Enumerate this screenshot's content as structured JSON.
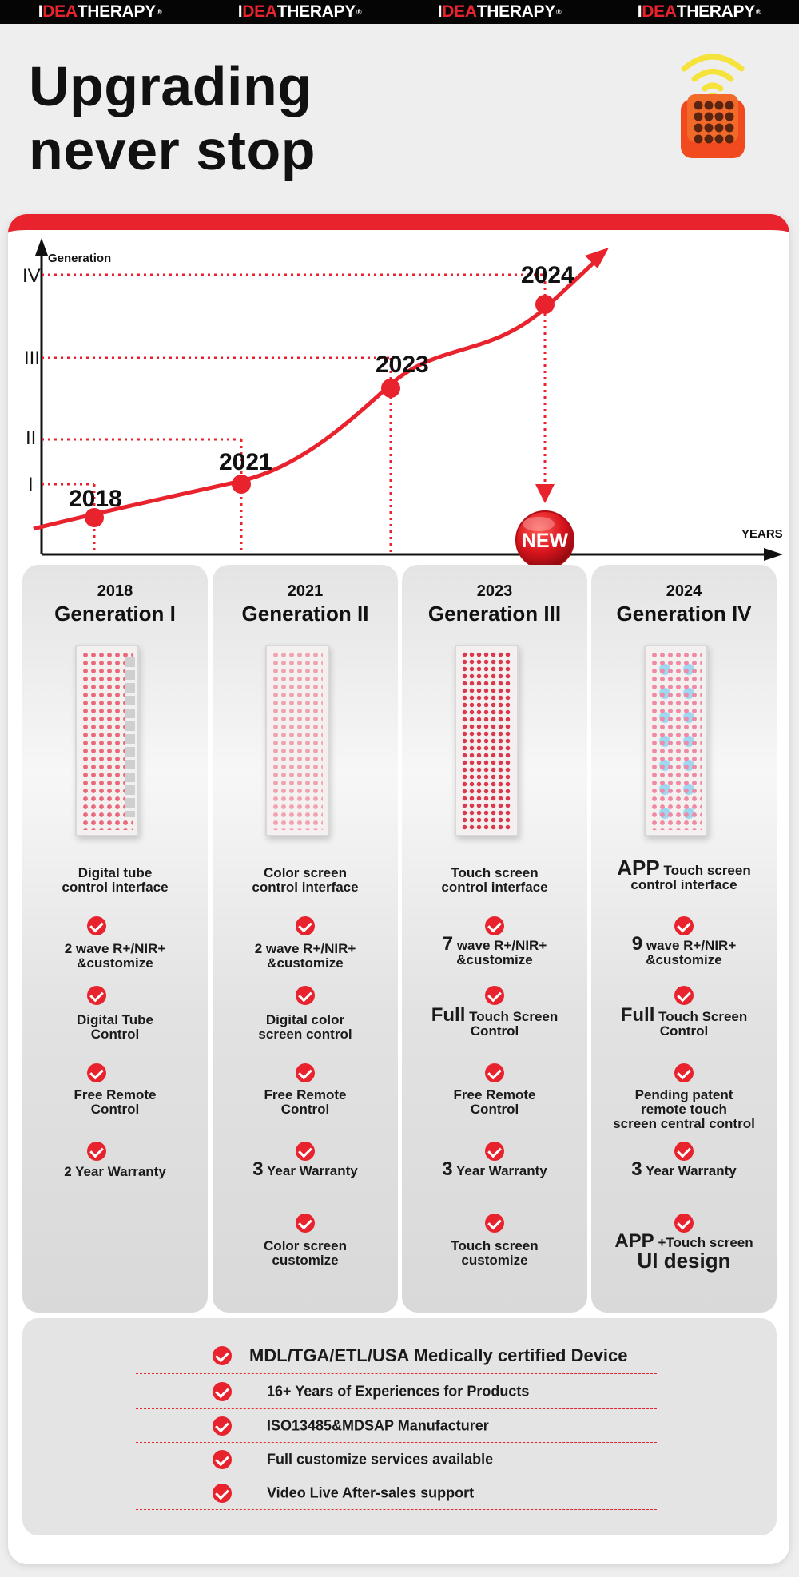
{
  "brand": {
    "items": [
      {
        "pre": "I",
        "accent": "DEA",
        "rest": "THERAPY",
        "reg": "®"
      },
      {
        "pre": "I",
        "accent": "DEA",
        "rest": "THERAPY",
        "reg": "®"
      },
      {
        "pre": "I",
        "accent": "DEA",
        "rest": "THERAPY",
        "reg": "®"
      },
      {
        "pre": "I",
        "accent": "DEA",
        "rest": "THERAPY",
        "reg": "®"
      }
    ]
  },
  "headline": {
    "line1": "Upgrading",
    "line2": "never stop"
  },
  "colors": {
    "accent": "#e8232d",
    "dark": "#050505",
    "panel": "#ffffff",
    "background": "#eeeeee",
    "icon_orange": "#f04a1e",
    "wifi_yellow": "#f5e23a"
  },
  "icons": [
    "wifi-icon",
    "remote-control-icon",
    "check-icon",
    "new-badge-icon"
  ],
  "chart": {
    "ylabel": "Generation",
    "xlabel": "YEARS",
    "yticks": [
      "I",
      "II",
      "III",
      "IV"
    ],
    "points": [
      {
        "year": "2018",
        "generation": 1
      },
      {
        "year": "2021",
        "generation": 2
      },
      {
        "year": "2023",
        "generation": 3
      },
      {
        "year": "2024",
        "generation": 4
      }
    ],
    "badge": "NEW"
  },
  "columns": [
    {
      "year": "2018",
      "generation": "Generation I",
      "f0": {
        "a": "Digital tube",
        "b": "control interface"
      },
      "f1": {
        "big": "",
        "a": "2 wave R+/NIR+",
        "b": "&customize"
      },
      "f2": {
        "big": "",
        "a": "Digital Tube",
        "b": "Control"
      },
      "f3": {
        "a": "Free Remote",
        "b": "Control",
        "c": ""
      },
      "f4": {
        "big": "",
        "a": "2 Year Warranty"
      }
    },
    {
      "year": "2021",
      "generation": "Generation II",
      "f0": {
        "a": "Color screen",
        "b": "control interface"
      },
      "f1": {
        "big": "",
        "a": "2 wave R+/NIR+",
        "b": "&customize"
      },
      "f2": {
        "big": "",
        "a": "Digital color",
        "b": "screen control"
      },
      "f3": {
        "a": "Free Remote",
        "b": "Control",
        "c": ""
      },
      "f4": {
        "big": "3",
        "a": "Year Warranty"
      },
      "f5": {
        "a": "Color screen",
        "b": "customize"
      }
    },
    {
      "year": "2023",
      "generation": "Generation III",
      "f0": {
        "a": "Touch screen",
        "b": "control interface"
      },
      "f1": {
        "big": "7",
        "a": "wave R+/NIR+",
        "b": "&customize"
      },
      "f2": {
        "big": "Full",
        "a": "Touch Screen",
        "b": "Control"
      },
      "f3": {
        "a": "Free Remote",
        "b": "Control",
        "c": ""
      },
      "f4": {
        "big": "3",
        "a": "Year Warranty"
      },
      "f5": {
        "a": "Touch screen",
        "b": "customize"
      }
    },
    {
      "year": "2024",
      "generation": "Generation IV",
      "f0": {
        "big": "APP",
        "a": "Touch screen",
        "b": "control interface"
      },
      "f1": {
        "big": "9",
        "a": "wave R+/NIR+",
        "b": "&customize"
      },
      "f2": {
        "big": "Full",
        "a": "Touch Screen",
        "b": "Control"
      },
      "f3": {
        "a": "Pending patent",
        "b": "remote touch",
        "c": "screen central control"
      },
      "f4": {
        "big": "3",
        "a": "Year Warranty"
      },
      "f5": {
        "big": "APP",
        "a": "+Touch screen",
        "b": "UI design"
      }
    }
  ],
  "certifications": [
    "MDL/TGA/ETL/USA Medically certified Device",
    "16+ Years of Experiences for Products",
    "ISO13485&MDSAP Manufacturer",
    "Full customize services available",
    "Video Live After-sales support"
  ]
}
